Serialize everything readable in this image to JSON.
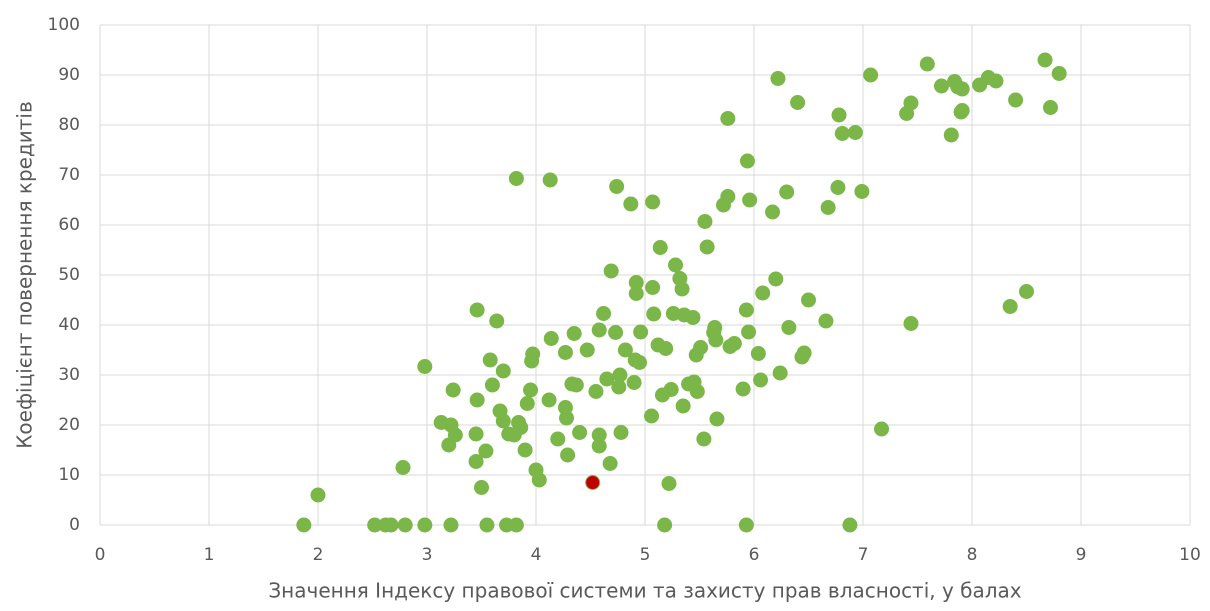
{
  "chart_data": {
    "type": "scatter",
    "xlabel": "Значення Індексу правової системи та захисту прав власності, у балах",
    "ylabel": "Коефіцієнт повернення кредитів",
    "xlim": [
      0,
      10
    ],
    "xticks": [
      0,
      1,
      2,
      3,
      4,
      5,
      6,
      7,
      8,
      9,
      10
    ],
    "ylim": [
      0,
      100
    ],
    "yticks": [
      0,
      10,
      20,
      30,
      40,
      50,
      60,
      70,
      80,
      90,
      100
    ],
    "grid": true,
    "series": [
      {
        "color": "#7ab648",
        "x": [
          1.87,
          2.52,
          2.62,
          2.67,
          2.8,
          2.98,
          3.22,
          3.55,
          3.73,
          3.82,
          5.18,
          5.93,
          6.88,
          2.0,
          2.78,
          2.98,
          3.13,
          3.2,
          3.22,
          3.24,
          3.26,
          3.45,
          3.45,
          3.46,
          3.46,
          3.5,
          3.54,
          3.58,
          3.6,
          3.64,
          3.67,
          3.7,
          3.7,
          3.75,
          3.8,
          3.82,
          3.84,
          3.86,
          3.9,
          3.92,
          3.95,
          3.96,
          3.97,
          4.0,
          4.03,
          4.12,
          4.13,
          4.14,
          4.2,
          4.27,
          4.27,
          4.28,
          4.29,
          4.33,
          4.35,
          4.37,
          4.4,
          4.47,
          4.55,
          4.58,
          4.58,
          4.58,
          4.62,
          4.65,
          4.68,
          4.69,
          4.73,
          4.74,
          4.76,
          4.77,
          4.78,
          4.82,
          4.87,
          4.9,
          4.91,
          4.92,
          4.92,
          4.95,
          4.96,
          5.06,
          5.07,
          5.07,
          5.08,
          5.12,
          5.14,
          5.16,
          5.19,
          5.22,
          5.24,
          5.26,
          5.28,
          5.32,
          5.34,
          5.35,
          5.36,
          5.4,
          5.44,
          5.45,
          5.47,
          5.48,
          5.51,
          5.54,
          5.55,
          5.57,
          5.63,
          5.64,
          5.65,
          5.66,
          5.72,
          5.76,
          5.76,
          5.78,
          5.82,
          5.9,
          5.93,
          5.94,
          5.95,
          5.96,
          6.04,
          6.06,
          6.08,
          6.17,
          6.2,
          6.22,
          6.24,
          6.3,
          6.32,
          6.4,
          6.44,
          6.46,
          6.5,
          6.66,
          6.68,
          6.77,
          6.78,
          6.81,
          6.93,
          6.99,
          7.07,
          7.17,
          7.4,
          7.44,
          7.44,
          7.59,
          7.72,
          7.81,
          7.84,
          7.87,
          7.9,
          7.91,
          7.91,
          8.07,
          8.15,
          8.22,
          8.35,
          8.4,
          8.5,
          8.67,
          8.72,
          8.8
        ],
        "values": [
          0,
          0,
          0,
          0,
          0,
          0,
          0,
          0,
          0,
          0,
          0,
          0,
          0,
          6,
          11.5,
          31.7,
          20.5,
          16,
          20,
          27,
          18,
          12.7,
          18.2,
          25,
          43,
          7.5,
          14.8,
          33,
          28,
          40.8,
          22.8,
          20.8,
          30.8,
          18.2,
          18,
          69.3,
          20.5,
          19.5,
          15,
          24.3,
          27,
          32.8,
          34.2,
          11,
          9,
          25,
          69,
          37.3,
          17.2,
          23.5,
          34.5,
          21.4,
          14,
          28.2,
          38.3,
          28,
          18.5,
          35,
          26.7,
          39,
          18,
          15.8,
          42.3,
          29.2,
          12.3,
          50.8,
          38.5,
          67.7,
          27.6,
          30,
          18.5,
          35,
          64.2,
          28.5,
          33,
          48.5,
          46.3,
          32.5,
          38.6,
          21.8,
          64.6,
          47.5,
          42.2,
          36,
          55.5,
          26,
          35.3,
          8.3,
          27.1,
          42.3,
          52,
          49.3,
          47.2,
          23.8,
          42,
          28.2,
          41.5,
          28.6,
          34,
          26.7,
          35.5,
          17.2,
          60.7,
          55.6,
          38.5,
          39.5,
          37,
          21.2,
          64,
          65.7,
          81.3,
          35.7,
          36.3,
          27.2,
          43,
          72.8,
          38.6,
          65,
          34.3,
          29,
          46.4,
          62.6,
          49.2,
          89.3,
          30.4,
          66.6,
          39.5,
          84.5,
          33.6,
          34.4,
          45,
          40.8,
          63.5,
          67.5,
          82,
          78.3,
          78.5,
          66.7,
          90,
          19.2,
          82.3,
          84.4,
          40.3,
          92.2,
          87.8,
          78,
          88.7,
          87.6,
          82.6,
          87.2,
          82.9,
          88,
          89.5,
          88.8,
          43.7,
          85,
          46.7,
          93,
          83.5,
          90.3
        ]
      },
      {
        "color": "#c00000",
        "x": [
          4.52
        ],
        "values": [
          8.5
        ]
      }
    ]
  }
}
